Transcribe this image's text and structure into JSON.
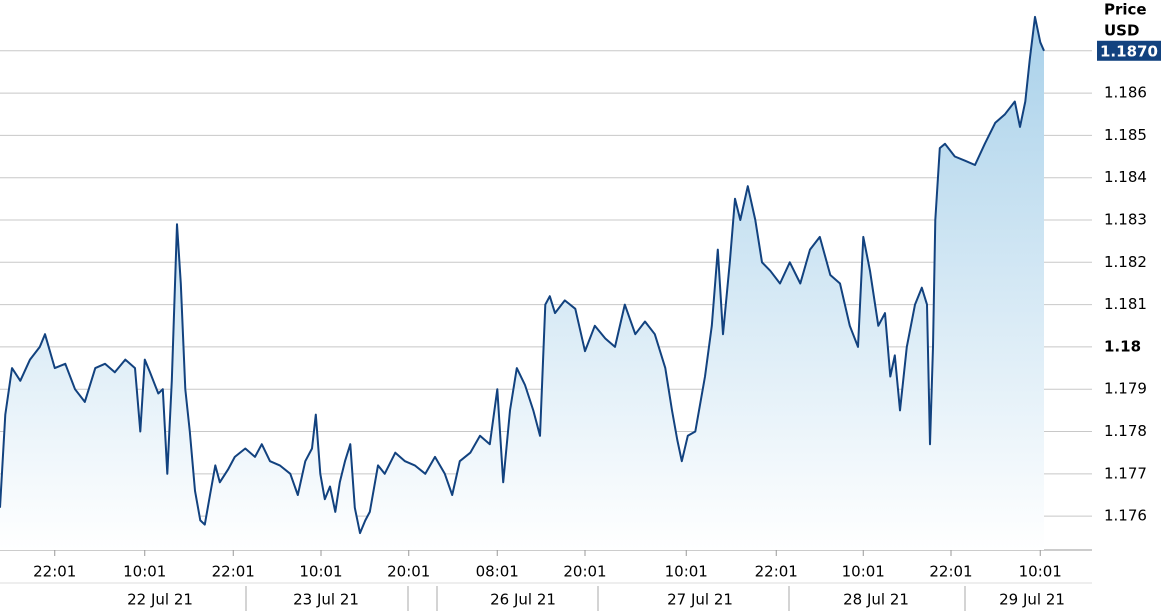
{
  "chart_data": {
    "type": "area",
    "y_axis_title": "Price",
    "y_axis_unit": "USD",
    "color": "#12427f",
    "fill_top": "#a9d1ea",
    "fill_bottom": "#ffffff",
    "grid": true,
    "emphasized_tick": 1.18,
    "last_price": {
      "value": 1.187,
      "label": "1.1870"
    },
    "xlim": [
      0,
      145.6
    ],
    "ylim": [
      1.1752,
      1.1882
    ],
    "yticks": [
      1.176,
      1.177,
      1.178,
      1.179,
      1.18,
      1.181,
      1.182,
      1.183,
      1.184,
      1.185,
      1.186,
      1.187
    ],
    "xticks": [
      {
        "value": 7.3,
        "label": "22:01"
      },
      {
        "value": 19.3,
        "label": "10:01"
      },
      {
        "value": 31.1,
        "label": "22:01"
      },
      {
        "value": 42.8,
        "label": "10:01"
      },
      {
        "value": 54.5,
        "label": "20:01"
      },
      {
        "value": 66.3,
        "label": "08:01"
      },
      {
        "value": 78,
        "label": "20:01"
      },
      {
        "value": 91.5,
        "label": "10:01"
      },
      {
        "value": 103.5,
        "label": "22:01"
      },
      {
        "value": 115.1,
        "label": "10:01"
      },
      {
        "value": 126.8,
        "label": "22:01"
      },
      {
        "value": 138.7,
        "label": "10:01"
      }
    ],
    "dates": [
      "22 Jul 21",
      "23 Jul 21",
      "26 Jul 21",
      "27 Jul 21",
      "28 Jul 21",
      "29 Jul 21"
    ],
    "x": [
      0,
      0.7,
      1.6,
      2.7,
      4,
      5.3,
      6,
      7.3,
      8.7,
      10,
      11.3,
      12.7,
      14,
      15.3,
      16.7,
      18,
      18.7,
      19.3,
      20,
      21.1,
      21.7,
      22.3,
      22.9,
      23.6,
      24.1,
      24.7,
      25.3,
      26,
      26.7,
      27.3,
      28,
      28.7,
      29.3,
      30.4,
      31.3,
      32.7,
      34,
      34.9,
      36,
      37.3,
      38.7,
      39.7,
      40.7,
      41.6,
      42.1,
      42.7,
      43.3,
      44,
      44.7,
      45.3,
      46,
      46.7,
      47.3,
      48,
      48.7,
      49.3,
      50.4,
      51.3,
      52.7,
      54,
      55.3,
      56.7,
      58,
      59.3,
      60.3,
      61.3,
      62.7,
      64,
      65.3,
      66.3,
      67.1,
      68,
      68.9,
      70,
      71.1,
      72,
      72.7,
      73.3,
      74,
      75.3,
      76.7,
      78,
      79.3,
      80.7,
      82,
      83.3,
      84.7,
      86,
      87.3,
      88.7,
      89.6,
      90.3,
      90.9,
      91.7,
      92.7,
      94,
      94.9,
      95.7,
      96.4,
      97.3,
      98,
      98.7,
      99.7,
      100.7,
      101.6,
      102.7,
      104,
      105.3,
      106.7,
      108,
      109.3,
      110.7,
      112,
      113.3,
      114.4,
      115.1,
      116,
      117.1,
      118,
      118.7,
      119.3,
      120,
      120.9,
      122,
      122.9,
      123.6,
      124,
      124.4,
      124.7,
      125.3,
      126,
      127.3,
      128.7,
      130,
      131.3,
      132.7,
      134,
      135.3,
      136,
      136.7,
      137.3,
      138,
      138.7,
      139.2
    ],
    "values": [
      1.1762,
      1.1784,
      1.1795,
      1.1792,
      1.1797,
      1.18,
      1.1803,
      1.1795,
      1.1796,
      1.179,
      1.1787,
      1.1795,
      1.1796,
      1.1794,
      1.1797,
      1.1795,
      1.178,
      1.1797,
      1.1794,
      1.1789,
      1.179,
      1.177,
      1.1792,
      1.1829,
      1.1815,
      1.179,
      1.178,
      1.1766,
      1.1759,
      1.1758,
      1.1765,
      1.1772,
      1.1768,
      1.1771,
      1.1774,
      1.1776,
      1.1774,
      1.1777,
      1.1773,
      1.1772,
      1.177,
      1.1765,
      1.1773,
      1.1776,
      1.1784,
      1.177,
      1.1764,
      1.1767,
      1.1761,
      1.1768,
      1.1773,
      1.1777,
      1.1762,
      1.1756,
      1.1759,
      1.1761,
      1.1772,
      1.177,
      1.1775,
      1.1773,
      1.1772,
      1.177,
      1.1774,
      1.177,
      1.1765,
      1.1773,
      1.1775,
      1.1779,
      1.1777,
      1.179,
      1.1768,
      1.1785,
      1.1795,
      1.1791,
      1.1785,
      1.1779,
      1.181,
      1.1812,
      1.1808,
      1.1811,
      1.1809,
      1.1799,
      1.1805,
      1.1802,
      1.18,
      1.181,
      1.1803,
      1.1806,
      1.1803,
      1.1795,
      1.1785,
      1.1778,
      1.1773,
      1.1779,
      1.178,
      1.1793,
      1.1805,
      1.1823,
      1.1803,
      1.182,
      1.1835,
      1.183,
      1.1838,
      1.183,
      1.182,
      1.1818,
      1.1815,
      1.182,
      1.1815,
      1.1823,
      1.1826,
      1.1817,
      1.1815,
      1.1805,
      1.18,
      1.1826,
      1.1818,
      1.1805,
      1.1808,
      1.1793,
      1.1798,
      1.1785,
      1.18,
      1.181,
      1.1814,
      1.181,
      1.1777,
      1.18,
      1.183,
      1.1847,
      1.1848,
      1.1845,
      1.1844,
      1.1843,
      1.1848,
      1.1853,
      1.1855,
      1.1858,
      1.1852,
      1.1858,
      1.1868,
      1.1878,
      1.1872,
      1.187
    ]
  }
}
